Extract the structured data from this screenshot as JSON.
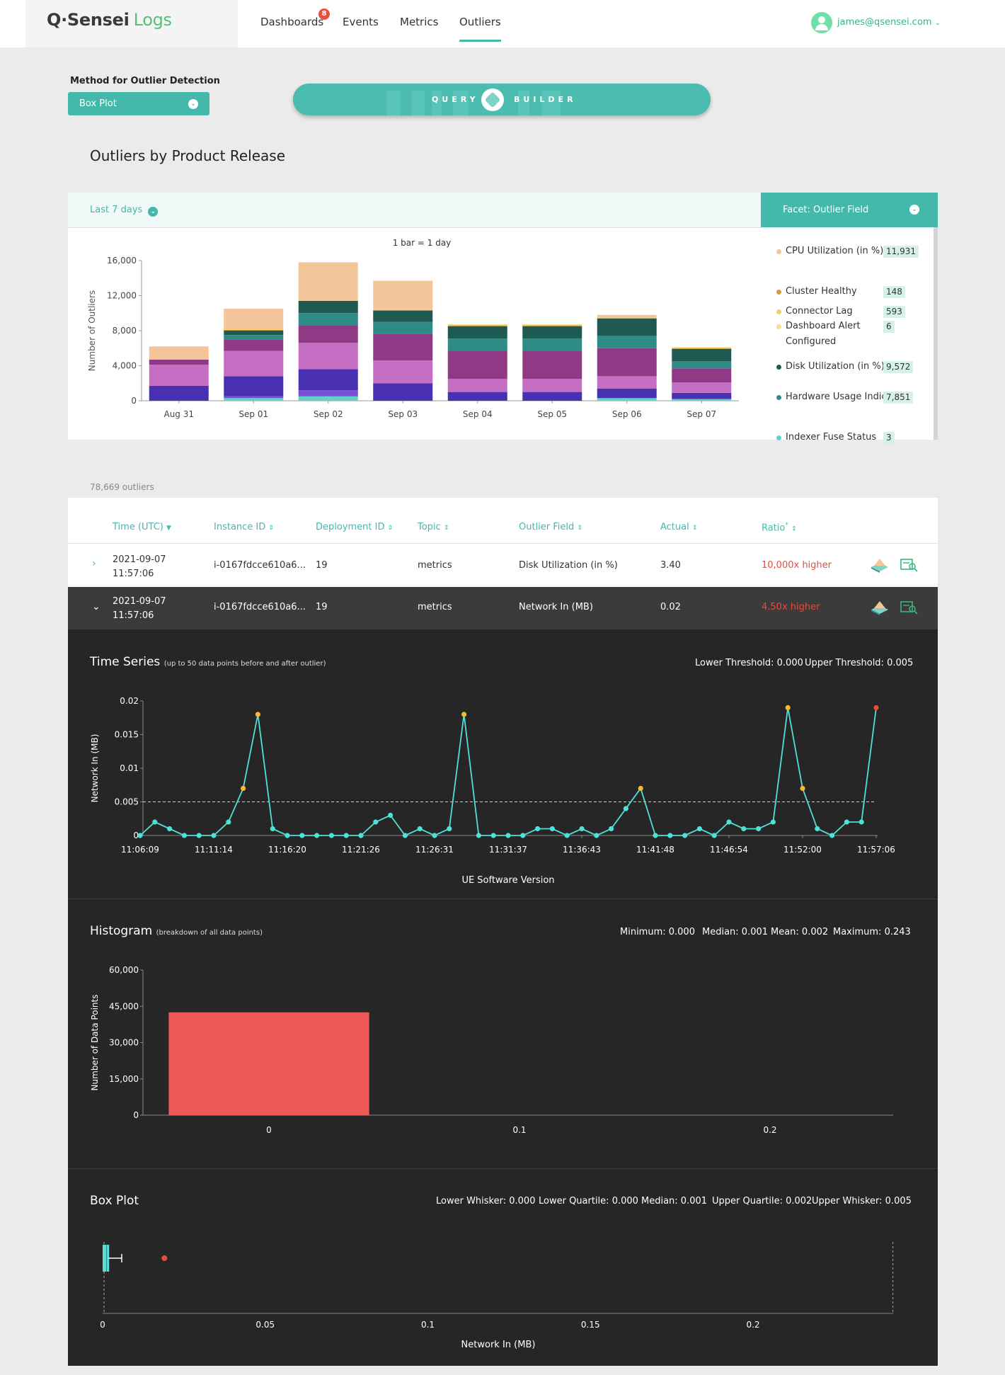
{
  "header": {
    "logo_main": "Q·Sensei",
    "logo_sub": "Logs",
    "nav": [
      "Dashboards",
      "Events",
      "Metrics",
      "Outliers"
    ],
    "active_nav": "Outliers",
    "dashboards_badge": "8",
    "user_email": "james@qsensei.com"
  },
  "controls": {
    "method_label": "Method for Outlier Detection",
    "method_value": "Box Plot",
    "query_builder_left": "QUERY",
    "query_builder_right": "BUILDER"
  },
  "section_title": "Outliers by Product Release",
  "chart_panel": {
    "time_range": "Last 7 days",
    "facet_label": "Facet: Outlier Field",
    "legend": [
      {
        "label": "CPU Utilization (in %)",
        "count": "11,931",
        "color": "#f5c59a"
      },
      {
        "label": "Cluster Healthy",
        "count": "148",
        "color": "#c9a33a"
      },
      {
        "label": "Connector Lag",
        "count": "593",
        "color": "#f0d060"
      },
      {
        "label": "Dashboard Alert Configured",
        "count": "6",
        "color": "#f6e08a"
      },
      {
        "label": "Disk Utilization (in %)",
        "count": "9,572",
        "color": "#1e5a52"
      },
      {
        "label": "Hardware Usage Indicator",
        "count": "7,851",
        "color": "#2f8b86"
      },
      {
        "label": "Indexer Fuse Status",
        "count": "3",
        "color": "#5fd2cc"
      }
    ]
  },
  "chart_data": [
    {
      "type": "bar",
      "stacked": true,
      "title": "1 bar = 1 day",
      "ylabel": "Number of Outliers",
      "ylim": [
        0,
        16000
      ],
      "yticks": [
        "16,000",
        "12,000",
        "8,000",
        "4,000",
        "0"
      ],
      "categories": [
        "Aug 31",
        "Sep 01",
        "Sep 02",
        "Sep 03",
        "Sep 04",
        "Sep 05",
        "Sep 06",
        "Sep 07"
      ],
      "series": [
        {
          "color": "#5fd2cc",
          "values": [
            0,
            300,
            500,
            0,
            0,
            0,
            300,
            200
          ]
        },
        {
          "color": "#7a4fd6",
          "values": [
            0,
            200,
            700,
            0,
            0,
            0,
            0,
            0
          ]
        },
        {
          "color": "#4830b0",
          "values": [
            1700,
            2300,
            2400,
            2000,
            1000,
            1000,
            1100,
            700
          ]
        },
        {
          "color": "#c46ec4",
          "values": [
            2400,
            2900,
            3000,
            2600,
            1500,
            1500,
            1400,
            1200
          ]
        },
        {
          "color": "#8f3a85",
          "values": [
            600,
            1300,
            2000,
            3000,
            3200,
            3200,
            3200,
            1600
          ]
        },
        {
          "color": "#2f8b86",
          "values": [
            0,
            500,
            1400,
            1400,
            1400,
            1400,
            1400,
            800
          ]
        },
        {
          "color": "#1e5a52",
          "values": [
            0,
            500,
            1400,
            1300,
            1400,
            1400,
            2000,
            1400
          ]
        },
        {
          "color": "#c9a33a",
          "values": [
            0,
            100,
            0,
            0,
            100,
            100,
            0,
            100
          ]
        },
        {
          "color": "#f0d060",
          "values": [
            0,
            100,
            0,
            0,
            100,
            100,
            100,
            100
          ]
        },
        {
          "color": "#f5c59a",
          "values": [
            1500,
            2300,
            4400,
            3400,
            0,
            0,
            300,
            0
          ]
        }
      ]
    },
    {
      "type": "line",
      "title": "Time Series",
      "xlabel": "UE Software Version",
      "ylabel": "Network In (MB)",
      "ylim": [
        0,
        0.02
      ],
      "yticks": [
        "0.02",
        "0.015",
        "0.01",
        "0.005",
        "0"
      ],
      "xticks": [
        "11:06:09",
        "11:11:14",
        "11:16:20",
        "11:21:26",
        "11:26:31",
        "11:31:37",
        "11:36:43",
        "11:41:48",
        "11:46:54",
        "11:52:00",
        "11:57:06"
      ],
      "threshold": 0.005,
      "values": [
        0,
        0.002,
        0.001,
        0,
        0,
        0,
        0.002,
        0.007,
        0.018,
        0.001,
        0,
        0,
        0,
        0,
        0,
        0,
        0.002,
        0.003,
        0,
        0.001,
        0,
        0.001,
        0.018,
        0,
        0,
        0,
        0,
        0.001,
        0.001,
        0,
        0.001,
        0,
        0.001,
        0.004,
        0.007,
        0,
        0,
        0,
        0.001,
        0,
        0.002,
        0.001,
        0.001,
        0.002,
        0.019,
        0.007,
        0.001,
        0,
        0.002,
        0.002,
        0.019
      ],
      "outliers_above": [
        7,
        8,
        22,
        34,
        44,
        45
      ],
      "current_outlier": 50
    },
    {
      "type": "bar",
      "title": "Histogram",
      "xlabel": "Network In (MB)",
      "ylabel": "Number of Data Points",
      "ylim": [
        0,
        60000
      ],
      "yticks": [
        "60,000",
        "45,000",
        "30,000",
        "15,000",
        "0"
      ],
      "xticks": [
        "0",
        "0.1",
        "0.2"
      ],
      "bins": [
        {
          "x0": -0.04,
          "x1": 0.04,
          "value": 42500
        }
      ]
    },
    {
      "type": "box",
      "title": "Box Plot",
      "xlabel": "Network In (MB)",
      "xticks": [
        "0",
        "0.05",
        "0.1",
        "0.15",
        "0.2"
      ],
      "lower_whisker": 0.0,
      "lower_quartile": 0.0,
      "median": 0.001,
      "upper_quartile": 0.002,
      "upper_whisker": 0.005,
      "outlier": 0.019,
      "max": 0.243
    }
  ],
  "table": {
    "count_text": "78,669 outliers",
    "headers": [
      "Time (UTC)",
      "Instance ID",
      "Deployment ID",
      "Topic",
      "Outlier Field",
      "Actual",
      "Ratio"
    ],
    "ratio_suffix": "*",
    "rows": [
      {
        "time_date": "2021-09-07",
        "time_clock": "11:57:06",
        "instance": "i-0167fdcce610a6...",
        "deployment": "19",
        "topic": "metrics",
        "field": "Disk Utilization (in %)",
        "actual": "3.40",
        "ratio": "10,000x higher"
      },
      {
        "time_date": "2021-09-07",
        "time_clock": "11:57:06",
        "instance": "i-0167fdcce610a6...",
        "deployment": "19",
        "topic": "metrics",
        "field": "Network In (MB)",
        "actual": "0.02",
        "ratio": "4.50x higher"
      }
    ]
  },
  "time_series": {
    "title": "Time Series",
    "subtitle": "(up to 50 data points before and after outlier)",
    "lower_threshold": "Lower Threshold: 0.000",
    "upper_threshold": "Upper Threshold: 0.005"
  },
  "histogram": {
    "title": "Histogram",
    "subtitle": "(breakdown of all data points)",
    "minimum": "Minimum: 0.000",
    "median": "Median: 0.001",
    "mean": "Mean: 0.002",
    "maximum": "Maximum: 0.243"
  },
  "box_plot": {
    "title": "Box Plot",
    "lower_whisker": "Lower Whisker: 0.000",
    "lower_quartile": "Lower Quartile: 0.000",
    "median": "Median: 0.001",
    "upper_quartile": "Upper Quartile: 0.002",
    "upper_whisker": "Upper Whisker: 0.005"
  },
  "colors": {
    "accent": "#45b8ac",
    "brand_green": "#58c074",
    "outlier_red": "#e74c3c",
    "dark_bg": "#262626",
    "line": "#4fe0d6",
    "point_warning": "#f5b93a"
  }
}
